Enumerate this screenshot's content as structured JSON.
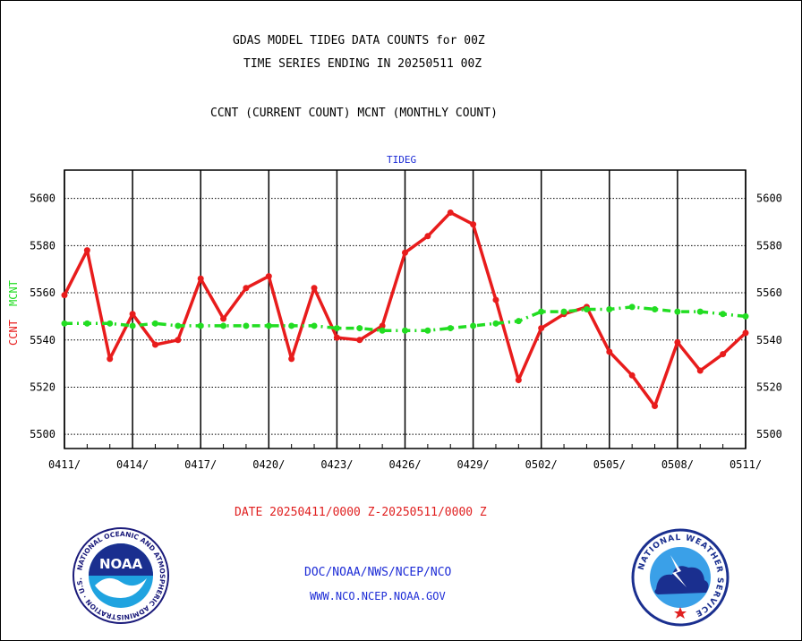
{
  "header": {
    "title_line1": "GDAS MODEL TIDEG DATA COUNTS for 00Z",
    "title_line2": "TIME SERIES ENDING IN 20250511 00Z",
    "title_line3": "CCNT (CURRENT COUNT) MCNT (MONTHLY COUNT)"
  },
  "footer": {
    "date_range": "DATE 20250411/0000 Z-20250511/0000 Z",
    "credit_line1": "DOC/NOAA/NWS/NCEP/NCO",
    "credit_line2": "WWW.NCO.NCEP.NOAA.GOV",
    "noaa_logo_text": "NOAA",
    "noaa_ring_text": "NATIONAL OCEANIC AND ATMOSPHERIC ADMINISTRATION · U.S. DEPARTMENT OF COMMERCE ·",
    "nws_ring_text": "NATIONAL WEATHER SERVICE"
  },
  "colors": {
    "ccnt": "#e81c1c",
    "mcnt": "#22dd22",
    "subtitle": "#1c2bd6",
    "grid": "#000000"
  },
  "chart_data": {
    "type": "line",
    "subtitle": "TIDEG",
    "ylabel_left": "CCNT",
    "ylabel_right_of_left": "MCNT",
    "ylim": [
      5494,
      5612
    ],
    "yticks": [
      5500,
      5520,
      5540,
      5560,
      5580,
      5600
    ],
    "ytick_labels": [
      "5500",
      "5520",
      "5540",
      "5560",
      "5580",
      "5600"
    ],
    "xlim": [
      0,
      30
    ],
    "xticks": [
      0,
      3,
      6,
      9,
      12,
      15,
      18,
      21,
      24,
      27,
      30
    ],
    "xtick_labels": [
      "0411/",
      "0414/",
      "0417/",
      "0420/",
      "0423/",
      "0426/",
      "0429/",
      "0502/",
      "0505/",
      "0508/",
      "0511/"
    ],
    "grid": true,
    "series": [
      {
        "name": "CCNT",
        "x": [
          0,
          1,
          2,
          3,
          4,
          5,
          6,
          7,
          8,
          9,
          10,
          11,
          12,
          13,
          14,
          15,
          16,
          17,
          18,
          19,
          20,
          21,
          22,
          23,
          24,
          25,
          26,
          27,
          28,
          29,
          30
        ],
        "values": [
          5559,
          5578,
          5532,
          5551,
          5538,
          5540,
          5566,
          5549,
          5562,
          5567,
          5532,
          5562,
          5541,
          5540,
          5546,
          5577,
          5584,
          5594,
          5589,
          5557,
          5523,
          5545,
          5551,
          5554,
          5535,
          5525,
          5512,
          5539,
          5527,
          5534,
          5543
        ],
        "style": "solid"
      },
      {
        "name": "MCNT",
        "x": [
          0,
          1,
          2,
          3,
          4,
          5,
          6,
          7,
          8,
          9,
          10,
          11,
          12,
          13,
          14,
          15,
          16,
          17,
          18,
          19,
          20,
          21,
          22,
          23,
          24,
          25,
          26,
          27,
          28,
          29,
          30
        ],
        "values": [
          5547,
          5547,
          5547,
          5546,
          5547,
          5546,
          5546,
          5546,
          5546,
          5546,
          5546,
          5546,
          5545,
          5545,
          5544,
          5544,
          5544,
          5545,
          5546,
          5547,
          5548,
          5552,
          5552,
          5553,
          5553,
          5554,
          5553,
          5552,
          5552,
          5551,
          5550
        ],
        "style": "dashed"
      }
    ]
  }
}
